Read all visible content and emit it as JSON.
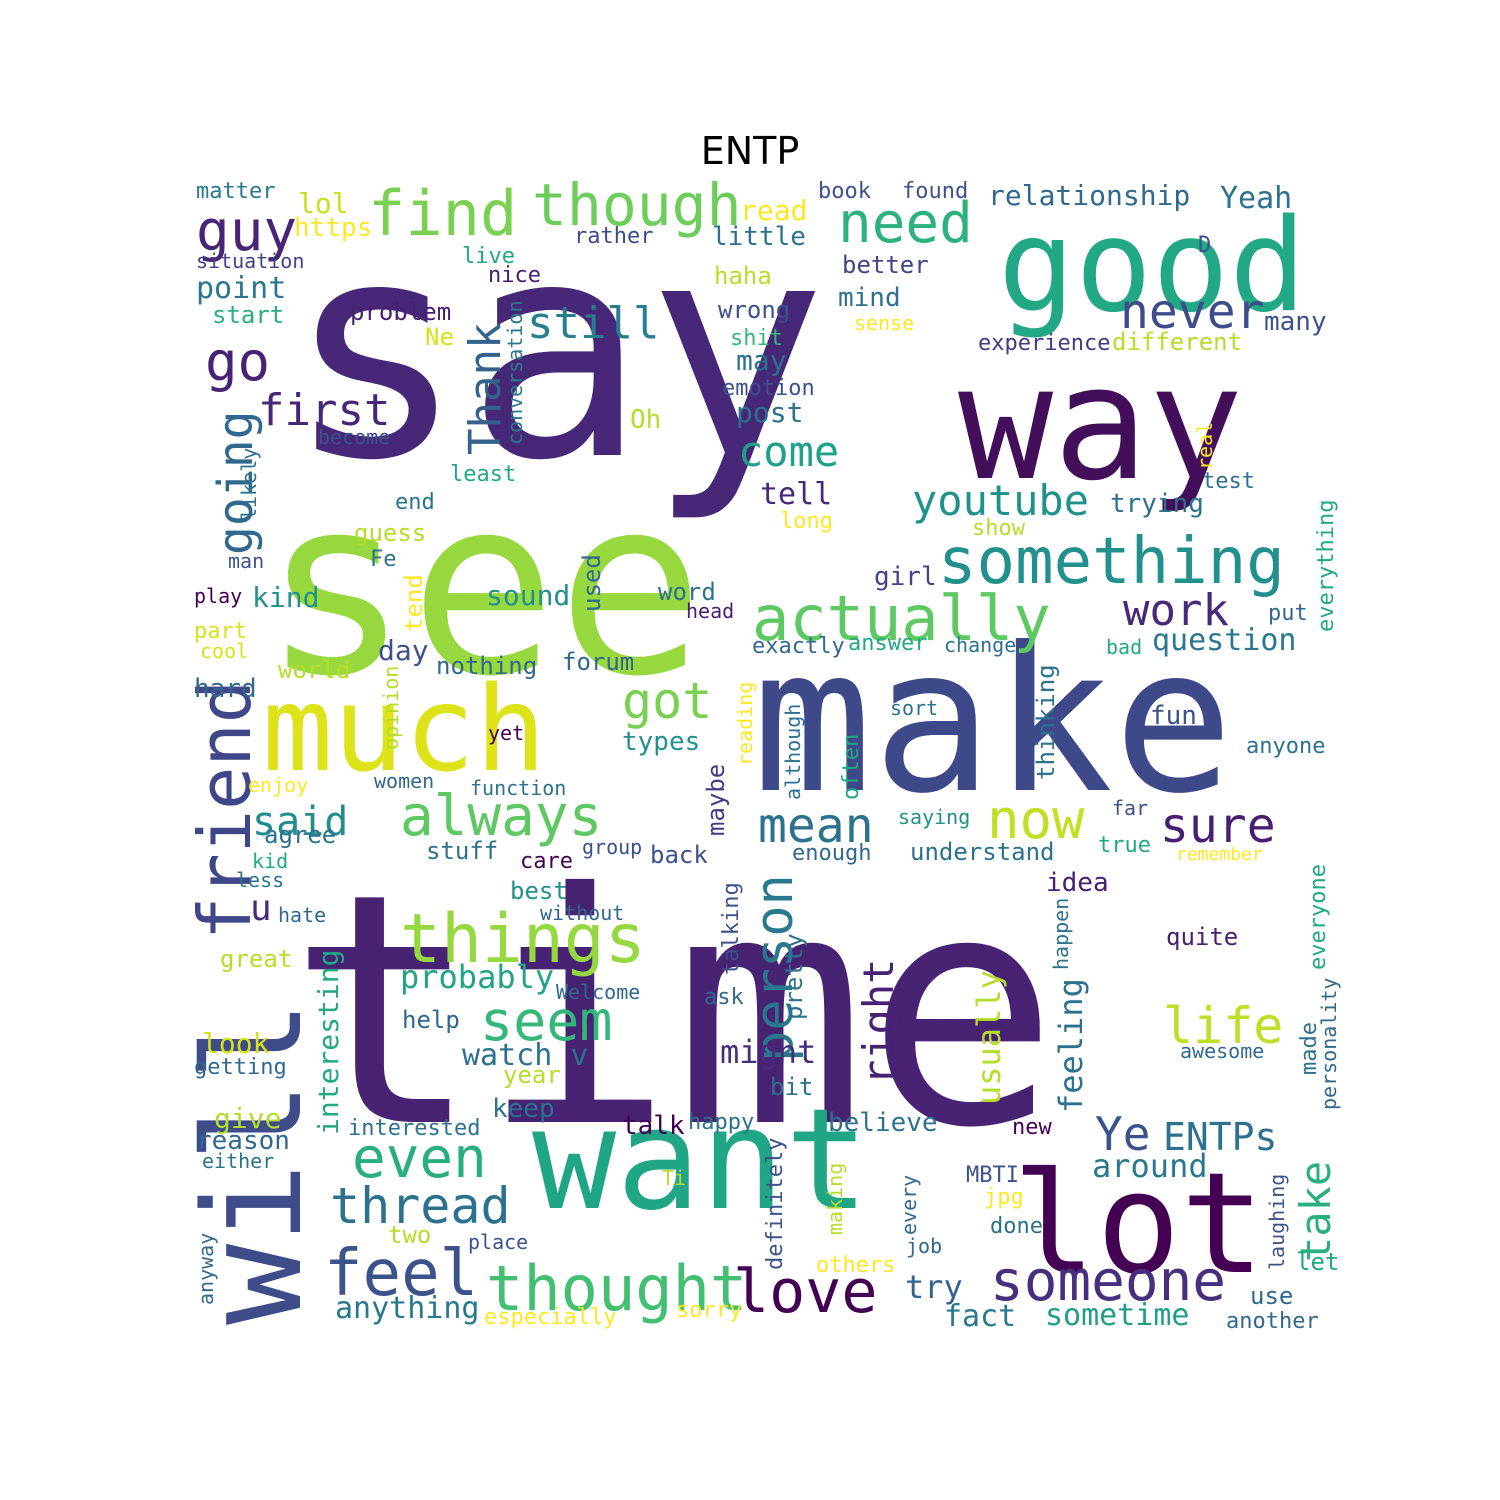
{
  "title": "ENTP",
  "words": [
    {
      "text": "say",
      "color": "#472878"
    },
    {
      "text": "time",
      "color": "#482374"
    },
    {
      "text": "see",
      "color": "#97d83f"
    },
    {
      "text": "make",
      "color": "#3e4989"
    },
    {
      "text": "want",
      "color": "#21a685"
    },
    {
      "text": "good",
      "color": "#22a884"
    },
    {
      "text": "way",
      "color": "#440f5a"
    },
    {
      "text": "much",
      "color": "#dde318"
    },
    {
      "text": "will",
      "color": "#3e4c8a"
    },
    {
      "text": "lot",
      "color": "#440154"
    },
    {
      "text": "friend",
      "color": "#3f4788"
    },
    {
      "text": "things",
      "color": "#95d840"
    },
    {
      "text": "something",
      "color": "#22908d"
    },
    {
      "text": "actually",
      "color": "#5ec962"
    },
    {
      "text": "find",
      "color": "#7ad151"
    },
    {
      "text": "though",
      "color": "#6ccd5a"
    },
    {
      "text": "need",
      "color": "#2db27d"
    },
    {
      "text": "feel",
      "color": "#3b528b"
    },
    {
      "text": "thought",
      "color": "#43bf71"
    },
    {
      "text": "someone",
      "color": "#472f7d"
    },
    {
      "text": "love",
      "color": "#440154"
    },
    {
      "text": "always",
      "color": "#5ec962"
    },
    {
      "text": "even",
      "color": "#29af7f"
    },
    {
      "text": "thread",
      "color": "#2c728e"
    },
    {
      "text": "seem",
      "color": "#35b779"
    },
    {
      "text": "person",
      "color": "#2a788e"
    },
    {
      "text": "mean",
      "color": "#2c728e"
    },
    {
      "text": "now",
      "color": "#c2df23"
    },
    {
      "text": "sure",
      "color": "#481f70"
    },
    {
      "text": "going",
      "color": "#31688e"
    },
    {
      "text": "go",
      "color": "#482374"
    },
    {
      "text": "guy",
      "color": "#482576"
    },
    {
      "text": "never",
      "color": "#3e4c8a"
    },
    {
      "text": "still",
      "color": "#287d8e"
    },
    {
      "text": "Thank",
      "color": "#33638d"
    },
    {
      "text": "first",
      "color": "#482677"
    },
    {
      "text": "come",
      "color": "#1fa088"
    },
    {
      "text": "youtube",
      "color": "#20928c"
    },
    {
      "text": "work",
      "color": "#482878"
    },
    {
      "text": "got",
      "color": "#7ad151"
    },
    {
      "text": "life",
      "color": "#bddf26"
    },
    {
      "text": "right",
      "color": "#482173"
    },
    {
      "text": "take",
      "color": "#2ab07f"
    },
    {
      "text": "Ye",
      "color": "#3b528b"
    },
    {
      "text": "ENTPs",
      "color": "#2c728e"
    },
    {
      "text": "said",
      "color": "#218e8d"
    },
    {
      "text": "probably",
      "color": "#20a386"
    },
    {
      "text": "watch v",
      "color": "#2d718e"
    },
    {
      "text": "might",
      "color": "#472d7b"
    },
    {
      "text": "around",
      "color": "#2a788e"
    },
    {
      "text": "sometime",
      "color": "#1f9e89"
    },
    {
      "text": "try",
      "color": "#33638d"
    },
    {
      "text": "fact",
      "color": "#2a788e"
    },
    {
      "text": "anything",
      "color": "#2a788e"
    },
    {
      "text": "feeling",
      "color": "#2c728e"
    },
    {
      "text": "usually",
      "color": "#b5de2b"
    },
    {
      "text": "interesting",
      "color": "#22a884"
    },
    {
      "text": "point",
      "color": "#2a768e"
    },
    {
      "text": "relationship",
      "color": "#31688e"
    },
    {
      "text": "Yeah",
      "color": "#2c728e"
    },
    {
      "text": "matter",
      "color": "#2a788e"
    },
    {
      "text": "lol",
      "color": "#c8e020"
    },
    {
      "text": "https",
      "color": "#fde725"
    },
    {
      "text": "read",
      "color": "#fde725"
    },
    {
      "text": "book",
      "color": "#3b528b"
    },
    {
      "text": "found",
      "color": "#3b528b"
    },
    {
      "text": "rather",
      "color": "#3e4989"
    },
    {
      "text": "little",
      "color": "#2c728e"
    },
    {
      "text": "live",
      "color": "#22a884"
    },
    {
      "text": "situation",
      "color": "#414487"
    },
    {
      "text": "nice",
      "color": "#481c6e"
    },
    {
      "text": "haha",
      "color": "#b5de2b"
    },
    {
      "text": "better",
      "color": "#414487"
    },
    {
      "text": "D",
      "color": "#3b528b"
    },
    {
      "text": "mind",
      "color": "#2c728e"
    },
    {
      "text": "start",
      "color": "#29af7f"
    },
    {
      "text": "problem",
      "color": "#481f70"
    },
    {
      "text": "wrong",
      "color": "#3b528b"
    },
    {
      "text": "sense",
      "color": "#fde725"
    },
    {
      "text": "many",
      "color": "#3b528b"
    },
    {
      "text": "Ne",
      "color": "#d8e219"
    },
    {
      "text": "shit",
      "color": "#35b779"
    },
    {
      "text": "experience",
      "color": "#443a83"
    },
    {
      "text": "different",
      "color": "#b5de2b"
    },
    {
      "text": "may",
      "color": "#2d708e"
    },
    {
      "text": "emotion",
      "color": "#3b528b"
    },
    {
      "text": "post",
      "color": "#2c728e"
    },
    {
      "text": "Oh",
      "color": "#b5de2b"
    },
    {
      "text": "become",
      "color": "#3b528b"
    },
    {
      "text": "conversation",
      "color": "#2a788e"
    },
    {
      "text": "real",
      "color": "#fde725"
    },
    {
      "text": "least",
      "color": "#22a884"
    },
    {
      "text": "test",
      "color": "#2c728e"
    },
    {
      "text": "end",
      "color": "#2c728e"
    },
    {
      "text": "tell",
      "color": "#482878"
    },
    {
      "text": "trying",
      "color": "#2c728e"
    },
    {
      "text": "long",
      "color": "#fde725"
    },
    {
      "text": "likely",
      "color": "#2c728e"
    },
    {
      "text": "show",
      "color": "#b5de2b"
    },
    {
      "text": "guess",
      "color": "#b5de2b"
    },
    {
      "text": "Fe",
      "color": "#2c728e"
    },
    {
      "text": "man",
      "color": "#3b528b"
    },
    {
      "text": "girl",
      "color": "#414487"
    },
    {
      "text": "everything",
      "color": "#22a884"
    },
    {
      "text": "play",
      "color": "#440154"
    },
    {
      "text": "kind",
      "color": "#21918c"
    },
    {
      "text": "tend",
      "color": "#fde725"
    },
    {
      "text": "sound",
      "color": "#21918c"
    },
    {
      "text": "used",
      "color": "#31688e"
    },
    {
      "text": "word",
      "color": "#2c728e"
    },
    {
      "text": "head",
      "color": "#481f70"
    },
    {
      "text": "put",
      "color": "#31688e"
    },
    {
      "text": "question",
      "color": "#2a788e"
    },
    {
      "text": "part",
      "color": "#d8e219"
    },
    {
      "text": "answer",
      "color": "#22a884"
    },
    {
      "text": "change",
      "color": "#2c728e"
    },
    {
      "text": "exactly",
      "color": "#31688e"
    },
    {
      "text": "bad",
      "color": "#22a884"
    },
    {
      "text": "cool",
      "color": "#d8e219"
    },
    {
      "text": "day",
      "color": "#3b528b"
    },
    {
      "text": "world",
      "color": "#b5de2b"
    },
    {
      "text": "nothing",
      "color": "#31688e"
    },
    {
      "text": "forum",
      "color": "#31688e"
    },
    {
      "text": "thinking",
      "color": "#2c728e"
    },
    {
      "text": "hard",
      "color": "#31688e"
    },
    {
      "text": "reading",
      "color": "#fde725"
    },
    {
      "text": "although",
      "color": "#2c728e"
    },
    {
      "text": "sort",
      "color": "#2c728e"
    },
    {
      "text": "fun",
      "color": "#3b528b"
    },
    {
      "text": "opinion",
      "color": "#b5de2b"
    },
    {
      "text": "yet",
      "color": "#440154"
    },
    {
      "text": "types",
      "color": "#21918c"
    },
    {
      "text": "often",
      "color": "#22a884"
    },
    {
      "text": "anyone",
      "color": "#2c728e"
    },
    {
      "text": "enjoy",
      "color": "#fde725"
    },
    {
      "text": "women",
      "color": "#31688e"
    },
    {
      "text": "function",
      "color": "#2c728e"
    },
    {
      "text": "maybe",
      "color": "#443a83"
    },
    {
      "text": "far",
      "color": "#3b528b"
    },
    {
      "text": "agree",
      "color": "#2c728e"
    },
    {
      "text": "saying",
      "color": "#21918c"
    },
    {
      "text": "kid",
      "color": "#22a884"
    },
    {
      "text": "stuff",
      "color": "#2c728e"
    },
    {
      "text": "group",
      "color": "#3b528b"
    },
    {
      "text": "back",
      "color": "#3b528b"
    },
    {
      "text": "care",
      "color": "#440154"
    },
    {
      "text": "enough",
      "color": "#31688e"
    },
    {
      "text": "understand",
      "color": "#2c728e"
    },
    {
      "text": "true",
      "color": "#22a884"
    },
    {
      "text": "remember",
      "color": "#fde725"
    },
    {
      "text": "less",
      "color": "#2c728e"
    },
    {
      "text": "best",
      "color": "#21918c"
    },
    {
      "text": "idea",
      "color": "#481f70"
    },
    {
      "text": "u",
      "color": "#482878"
    },
    {
      "text": "hate",
      "color": "#31688e"
    },
    {
      "text": "without",
      "color": "#31688e"
    },
    {
      "text": "talking",
      "color": "#3b528b"
    },
    {
      "text": "pretty",
      "color": "#2c728e"
    },
    {
      "text": "happen",
      "color": "#2c728e"
    },
    {
      "text": "everyone",
      "color": "#22a884"
    },
    {
      "text": "quite",
      "color": "#481f70"
    },
    {
      "text": "great",
      "color": "#b5de2b"
    },
    {
      "text": "Welcome",
      "color": "#31688e"
    },
    {
      "text": "ask",
      "color": "#31688e"
    },
    {
      "text": "help",
      "color": "#31688e"
    },
    {
      "text": "look",
      "color": "#d8e219"
    },
    {
      "text": "awesome",
      "color": "#31688e"
    },
    {
      "text": "getting",
      "color": "#31688e"
    },
    {
      "text": "year",
      "color": "#b5de2b"
    },
    {
      "text": "bit",
      "color": "#2c728e"
    },
    {
      "text": "made",
      "color": "#2c728e"
    },
    {
      "text": "personality",
      "color": "#31688e"
    },
    {
      "text": "keep",
      "color": "#2c728e"
    },
    {
      "text": "give",
      "color": "#b5de2b"
    },
    {
      "text": "interested",
      "color": "#2c728e"
    },
    {
      "text": "happy",
      "color": "#2c728e"
    },
    {
      "text": "believe",
      "color": "#2c728e"
    },
    {
      "text": "new",
      "color": "#440154"
    },
    {
      "text": "talk",
      "color": "#440154"
    },
    {
      "text": "reason",
      "color": "#31688e"
    },
    {
      "text": "either",
      "color": "#2c728e"
    },
    {
      "text": "Ti",
      "color": "#b5de2b"
    },
    {
      "text": "definitely",
      "color": "#3b528b"
    },
    {
      "text": "making",
      "color": "#b5de2b"
    },
    {
      "text": "every",
      "color": "#31688e"
    },
    {
      "text": "MBTI",
      "color": "#3b528b"
    },
    {
      "text": "jpg",
      "color": "#fde725"
    },
    {
      "text": "done",
      "color": "#2c728e"
    },
    {
      "text": "laughing",
      "color": "#3b528b"
    },
    {
      "text": "two",
      "color": "#b5de2b"
    },
    {
      "text": "place",
      "color": "#3b528b"
    },
    {
      "text": "others",
      "color": "#fde725"
    },
    {
      "text": "job",
      "color": "#31688e"
    },
    {
      "text": "let",
      "color": "#22a884"
    },
    {
      "text": "anyway",
      "color": "#31688e"
    },
    {
      "text": "especially",
      "color": "#fde725"
    },
    {
      "text": "sorry",
      "color": "#fde725"
    },
    {
      "text": "use",
      "color": "#31688e"
    },
    {
      "text": "another",
      "color": "#31688e"
    }
  ]
}
